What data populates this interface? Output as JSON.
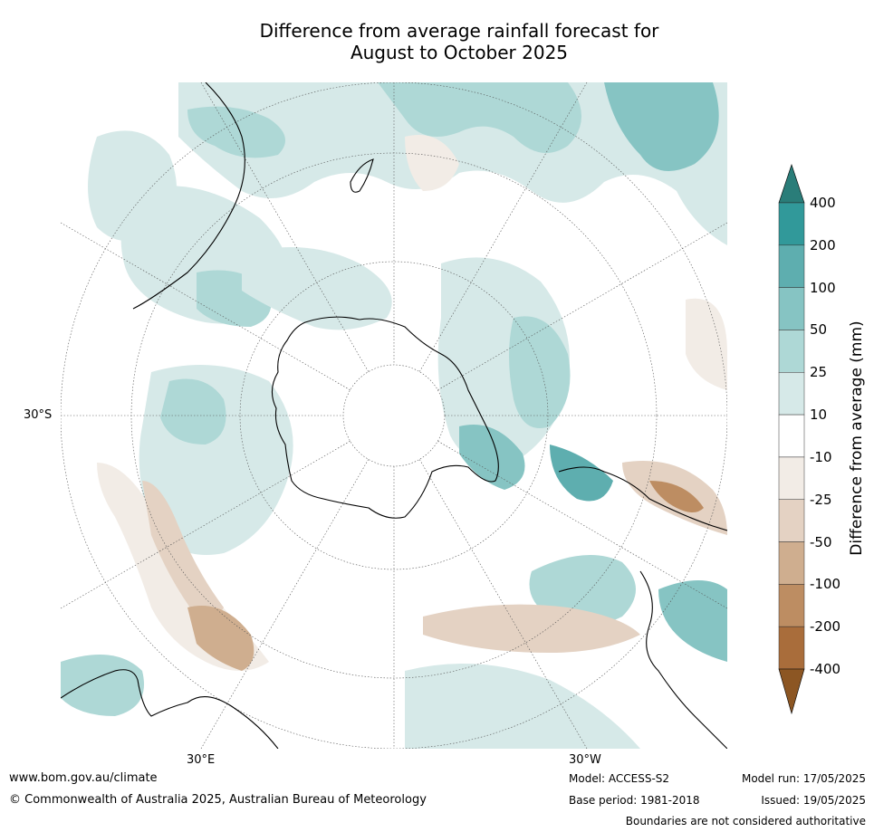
{
  "title": {
    "line1": "Difference from average rainfall forecast for",
    "line2": "August to October 2025"
  },
  "axis_labels": {
    "lat": "30°S",
    "lon_east": "30°E",
    "lon_west": "30°W"
  },
  "colorbar": {
    "title": "Difference from average (mm)",
    "ticks": [
      "400",
      "200",
      "100",
      "50",
      "25",
      "10",
      "-10",
      "-25",
      "-50",
      "-100",
      "-200",
      "-400"
    ],
    "colors": [
      "#2a7d79",
      "#31999a",
      "#5eaeaf",
      "#86c4c3",
      "#aed8d6",
      "#d6e9e8",
      "#ffffff",
      "#f2ece6",
      "#e4d2c3",
      "#cfae8f",
      "#bd8d62",
      "#a96d3b",
      "#8c5623"
    ]
  },
  "footer": {
    "url": "www.bom.gov.au/climate",
    "copyright": "© Commonwealth of Australia 2025, Australian Bureau of Meteorology",
    "model": "Model: ACCESS-S2",
    "base_period": "Base period: 1981-2018",
    "model_run": "Model run: 17/05/2025",
    "issued": "Issued: 19/05/2025",
    "disclaimer": "Boundaries are not considered authoritative"
  }
}
